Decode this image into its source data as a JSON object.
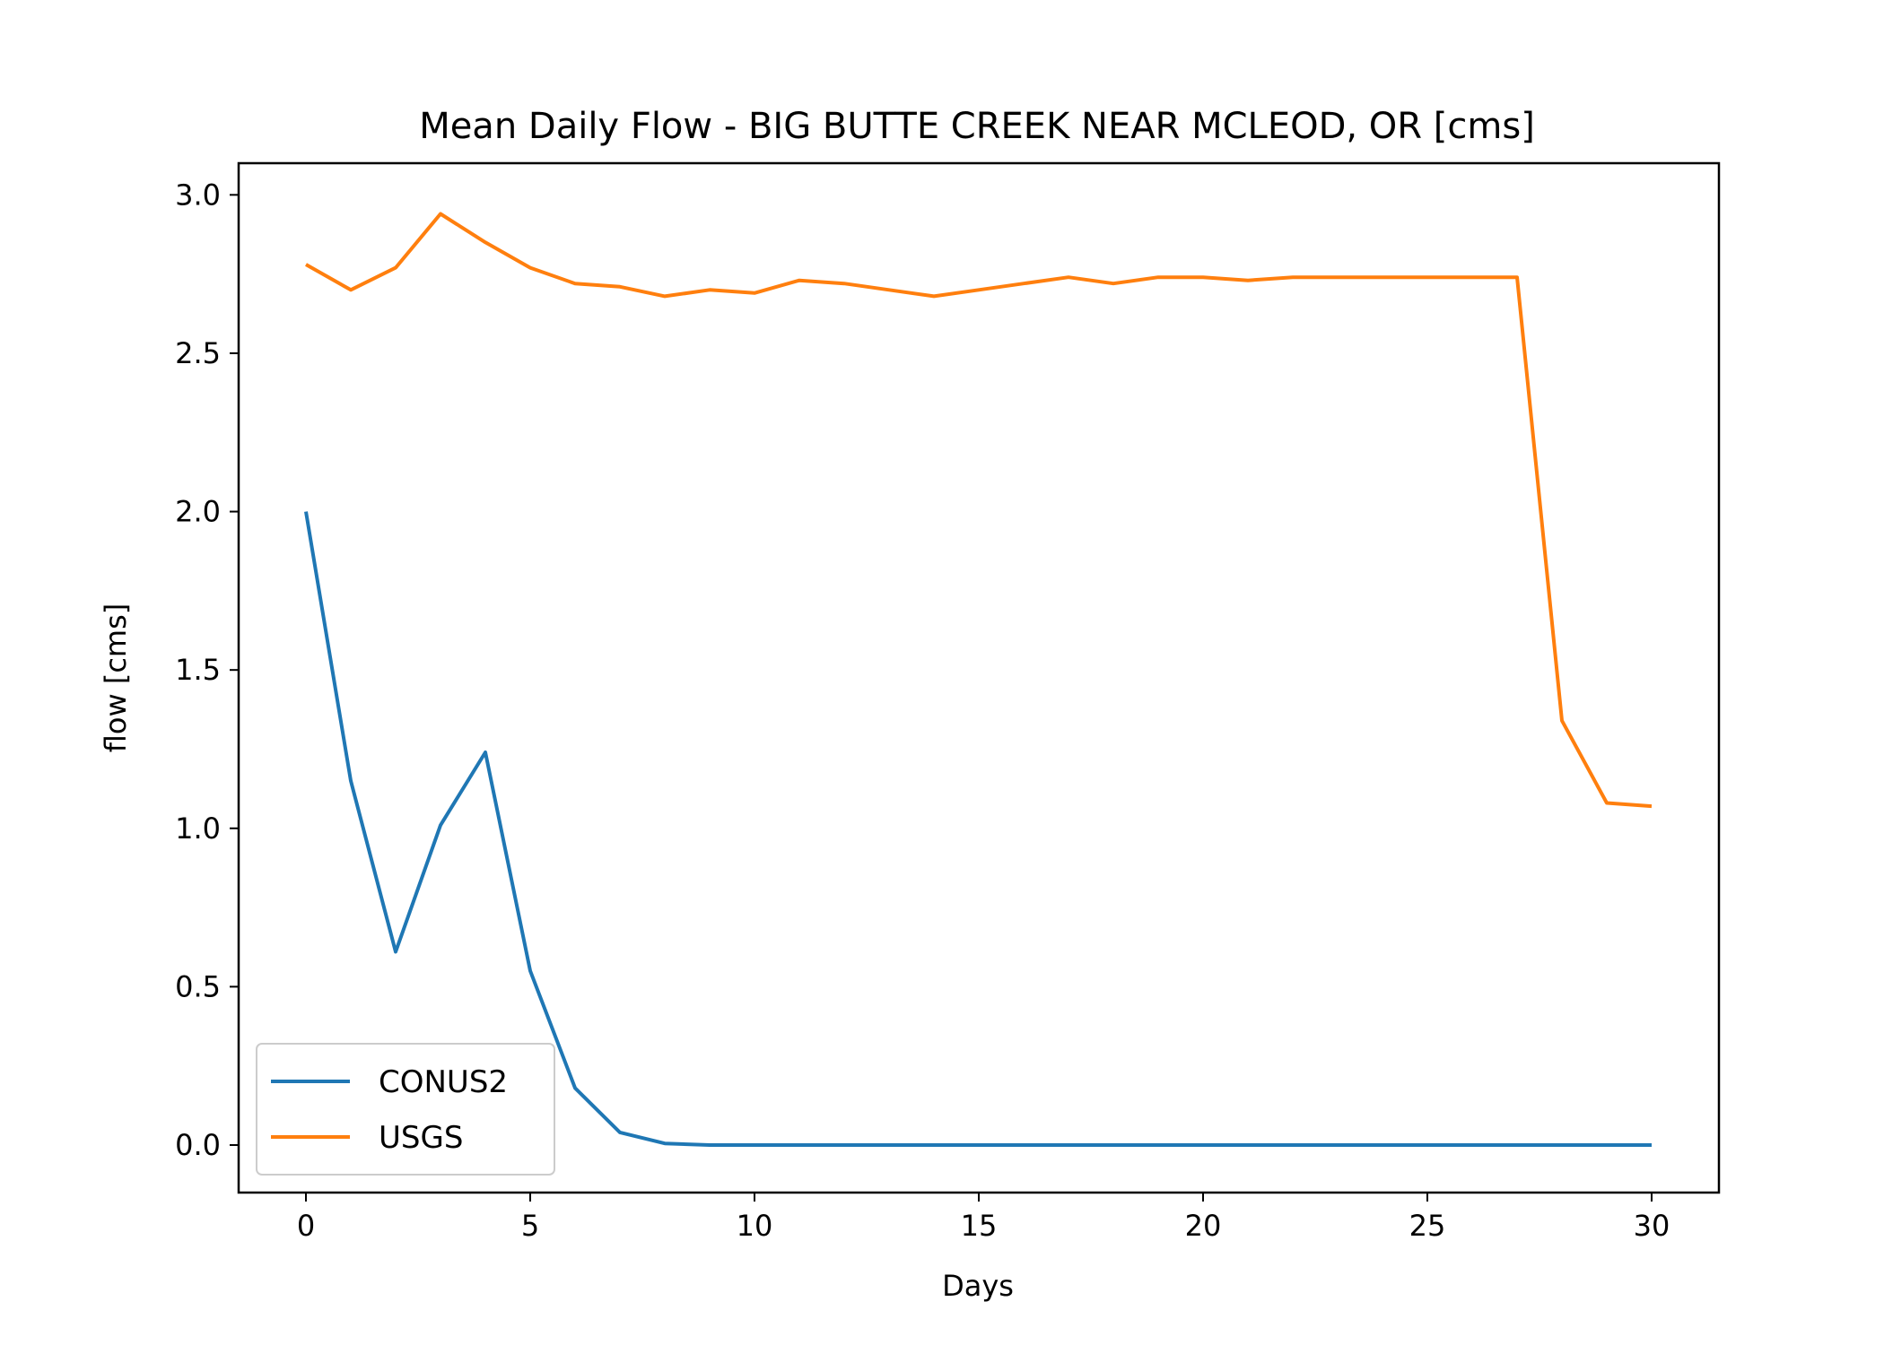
{
  "chart_data": {
    "type": "line",
    "title": "Mean Daily Flow - BIG BUTTE CREEK NEAR MCLEOD, OR [cms]",
    "xlabel": "Days",
    "ylabel": "flow [cms]",
    "xlim": [
      -1.5,
      31.5
    ],
    "ylim": [
      -0.15,
      3.1
    ],
    "xticks": [
      0,
      5,
      10,
      15,
      20,
      25,
      30
    ],
    "xtick_labels": [
      "0",
      "5",
      "10",
      "15",
      "20",
      "25",
      "30"
    ],
    "yticks": [
      0.0,
      0.5,
      1.0,
      1.5,
      2.0,
      2.5,
      3.0
    ],
    "ytick_labels": [
      "0.0",
      "0.5",
      "1.0",
      "1.5",
      "2.0",
      "2.5",
      "3.0"
    ],
    "grid": false,
    "legend_position": "lower-left",
    "x": [
      0,
      1,
      2,
      3,
      4,
      5,
      6,
      7,
      8,
      9,
      10,
      11,
      12,
      13,
      14,
      15,
      16,
      17,
      18,
      19,
      20,
      21,
      22,
      23,
      24,
      25,
      26,
      27,
      28,
      29,
      30
    ],
    "series": [
      {
        "name": "CONUS2",
        "color": "#1f77b4",
        "values": [
          2.0,
          1.15,
          0.61,
          1.01,
          1.24,
          0.55,
          0.18,
          0.04,
          0.005,
          0.0,
          0.0,
          0.0,
          0.0,
          0.0,
          0.0,
          0.0,
          0.0,
          0.0,
          0.0,
          0.0,
          0.0,
          0.0,
          0.0,
          0.0,
          0.0,
          0.0,
          0.0,
          0.0,
          0.0,
          0.0,
          0.0
        ]
      },
      {
        "name": "USGS",
        "color": "#ff7f0e",
        "values": [
          2.78,
          2.7,
          2.77,
          2.94,
          2.85,
          2.77,
          2.72,
          2.71,
          2.68,
          2.7,
          2.69,
          2.73,
          2.72,
          2.7,
          2.68,
          2.7,
          2.72,
          2.74,
          2.72,
          2.74,
          2.74,
          2.73,
          2.74,
          2.74,
          2.74,
          2.74,
          2.74,
          2.74,
          1.34,
          1.08,
          1.07
        ]
      }
    ]
  }
}
